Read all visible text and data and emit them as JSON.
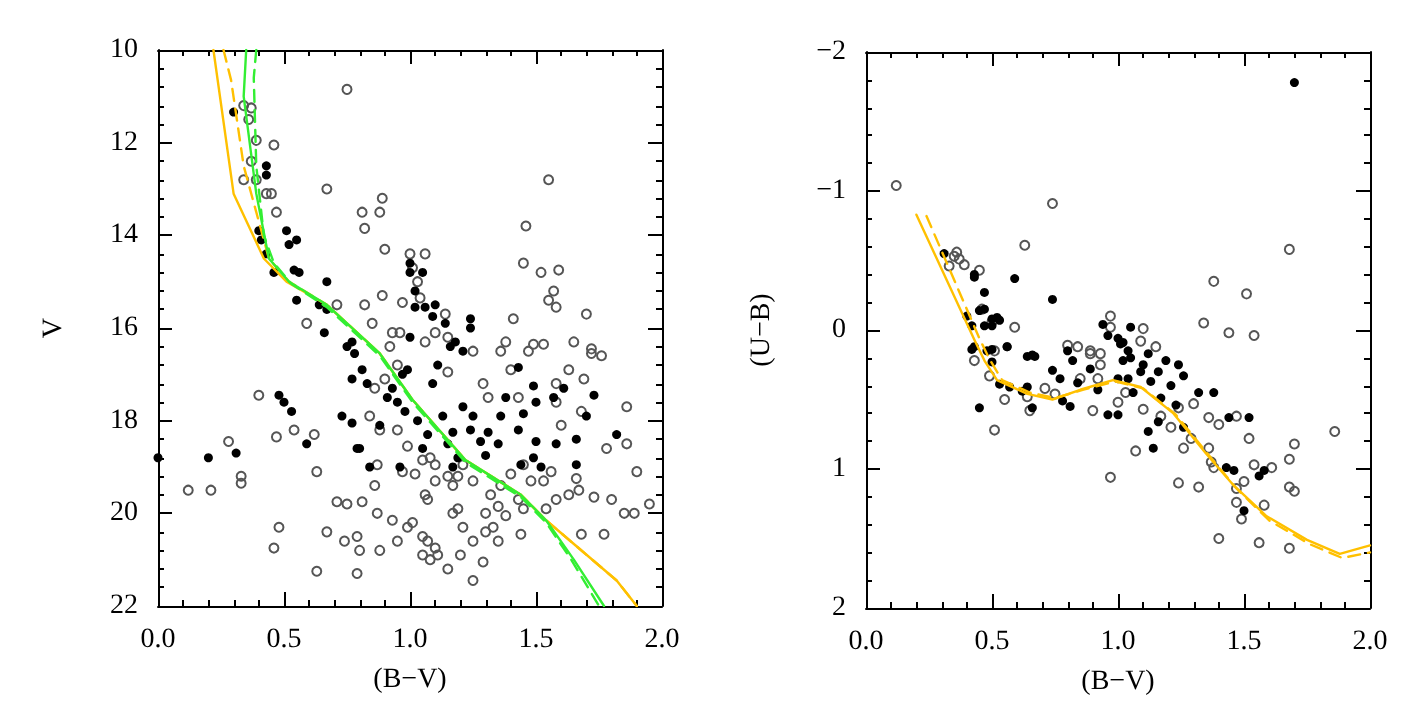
{
  "chart_data": [
    {
      "type": "scatter",
      "xlabel": "(B−V)",
      "ylabel": "V",
      "xlim": [
        0,
        2
      ],
      "ylim": [
        22,
        10
      ],
      "xticks": [
        {
          "value": 0,
          "label": "0.0"
        },
        {
          "value": 0.5,
          "label": "0.5"
        },
        {
          "value": 1,
          "label": "1.0"
        },
        {
          "value": 1.5,
          "label": "1.5"
        },
        {
          "value": 2,
          "label": "2.0"
        }
      ],
      "yticks": [
        10,
        12,
        14,
        16,
        18,
        20,
        22
      ],
      "grid": false,
      "series": [
        {
          "marker": "emptyCircle",
          "color": "#555555",
          "x": [
            0.34,
            0.37,
            0.36,
            0.39,
            0.46,
            0.37,
            0.34,
            0.39,
            0.43,
            0.45,
            0.47,
            0.75,
            0.67,
            0.81,
            0.88,
            0.89,
            0.82,
            0.9,
            1.0,
            1.06,
            1.01,
            1.03,
            0.89,
            1.04,
            0.97,
            1.14,
            1.1,
            1.15,
            1.41,
            1.38,
            1.46,
            1.45,
            1.52,
            1.55,
            1.59,
            1.57,
            1.55,
            1.58,
            1.7,
            1.65,
            1.49,
            1.53,
            1.72,
            1.72,
            0.59,
            0.71,
            0.82,
            0.85,
            0.93,
            0.96,
            1.06,
            0.92,
            0.4,
            0.54,
            0.47,
            0.62,
            0.28,
            0.33,
            0.33,
            0.12,
            0.21,
            0.48,
            0.46,
            0.63,
            0.71,
            0.75,
            0.67,
            0.74,
            0.63,
            0.79,
            0.79,
            0.8,
            0.81,
            0.87,
            0.86,
            0.87,
            0.88,
            0.93,
            0.95,
            0.99,
            1.01,
            1.05,
            1.07,
            1.1,
            1.11,
            1.15,
            1.25,
            1.29,
            1.25,
            1.3,
            1.35,
            1.44,
            1.38,
            1.45,
            1.54,
            1.58,
            1.63,
            1.67,
            1.73,
            1.8,
            1.85,
            1.89,
            1.95,
            1.9,
            1.86,
            1.86,
            1.78,
            1.77,
            1.68,
            1.68,
            1.58,
            1.6,
            1.66,
            1.56,
            1.48,
            1.43,
            1.32,
            1.3,
            1.19,
            1.17,
            1.1,
            1.06,
            1.02,
            0.97,
            0.99,
            1.05,
            1.1,
            1.15,
            1.19,
            1.25,
            1.36,
            1.4,
            1.45,
            1.53,
            1.4,
            1.43,
            1.29,
            1.31,
            1.15,
            1.25,
            1.36,
            1.47,
            1.58,
            1.63,
            1.69,
            0.95,
            0.9,
            0.86,
            0.88,
            0.95,
            0.84,
            1.08,
            1.21,
            1.07,
            1.17,
            1.21,
            1.33,
            1.35,
            1.05,
            1.08,
            1.2,
            1.76
          ],
          "values": [
            11.2,
            11.25,
            11.5,
            11.95,
            12.05,
            12.4,
            12.8,
            12.8,
            13.1,
            13.1,
            13.5,
            10.85,
            13.0,
            13.5,
            13.5,
            13.2,
            13.85,
            14.3,
            14.4,
            14.4,
            14.7,
            15.0,
            15.3,
            15.35,
            15.45,
            15.7,
            16.1,
            16.2,
            15.8,
            16.3,
            13.8,
            14.6,
            14.8,
            12.8,
            14.75,
            15.2,
            15.4,
            15.55,
            15.7,
            16.3,
            16.35,
            16.35,
            16.45,
            16.55,
            15.9,
            15.5,
            15.5,
            15.9,
            16.1,
            16.1,
            16.3,
            16.4,
            17.45,
            18.2,
            18.35,
            18.3,
            18.45,
            19.2,
            19.35,
            19.5,
            19.5,
            20.3,
            20.75,
            19.1,
            19.75,
            19.8,
            20.4,
            20.6,
            21.25,
            21.3,
            20.5,
            20.8,
            19.75,
            18.95,
            19.4,
            20.0,
            20.8,
            20.15,
            20.6,
            20.3,
            20.2,
            20.5,
            20.6,
            20.75,
            20.9,
            21.2,
            21.45,
            21.05,
            20.6,
            20.4,
            20.6,
            20.45,
            20.05,
            19.9,
            19.9,
            19.7,
            19.6,
            19.5,
            19.65,
            19.7,
            20.0,
            20.0,
            19.8,
            19.1,
            18.5,
            17.7,
            18.6,
            20.45,
            20.45,
            17.8,
            17.6,
            18.1,
            19.25,
            19.1,
            19.3,
            19.7,
            19.6,
            20.0,
            19.9,
            19.4,
            19.3,
            19.6,
            19.15,
            19.1,
            18.55,
            18.85,
            18.95,
            19.2,
            19.2,
            19.3,
            19.4,
            19.15,
            18.95,
            19.3,
            16.9,
            17.5,
            17.2,
            17.5,
            16.95,
            16.5,
            16.5,
            16.5,
            17.2,
            16.9,
            17.1,
            16.8,
            17.1,
            17.3,
            18.2,
            18.2,
            17.9,
            18.8,
            18.95,
            19.7,
            20.0,
            20.3,
            20.3,
            19.85,
            20.9,
            21.0,
            20.9,
            16.6
          ]
        },
        {
          "marker": "circle",
          "color": "#000000",
          "x": [
            0.3,
            0.43,
            0.43,
            0.4,
            0.41,
            0.51,
            0.43,
            0.52,
            0.55,
            0.46,
            0.54,
            0.56,
            0.55,
            0.67,
            0.64,
            0.67,
            0.66,
            0.75,
            0.77,
            1.0,
            1.0,
            1.05,
            1.02,
            1.02,
            1.06,
            1.1,
            1.09,
            1.14,
            1.0,
            1.16,
            1.18,
            1.21,
            1.24,
            1.24,
            0.78,
            0.0,
            0.2,
            0.31,
            0.48,
            0.5,
            0.53,
            0.59,
            0.73,
            0.77,
            0.79,
            0.8,
            0.84,
            0.77,
            0.81,
            0.83,
            0.91,
            0.93,
            0.95,
            0.97,
            0.98,
            1.03,
            1.05,
            1.09,
            1.11,
            1.13,
            1.15,
            1.17,
            1.19,
            1.21,
            1.24,
            1.25,
            1.28,
            1.3,
            1.31,
            1.35,
            1.36,
            1.38,
            1.43,
            1.45,
            1.44,
            1.49,
            1.5,
            1.52,
            1.49,
            1.5,
            1.57,
            1.58,
            1.61,
            1.66,
            1.66,
            1.7,
            1.73,
            1.82,
            1.43,
            1.07,
            0.96,
            1.17,
            0.88,
            0.99
          ],
          "values": [
            11.34,
            12.5,
            12.7,
            13.9,
            14.1,
            13.9,
            14.4,
            14.2,
            14.1,
            14.8,
            14.75,
            14.8,
            15.4,
            15.0,
            15.5,
            15.6,
            16.1,
            16.4,
            16.3,
            14.6,
            14.8,
            14.8,
            15.2,
            15.55,
            15.55,
            15.5,
            15.75,
            15.9,
            16.2,
            16.4,
            16.3,
            16.5,
            15.8,
            16.0,
            16.55,
            18.8,
            18.8,
            18.7,
            17.45,
            17.6,
            17.8,
            18.5,
            17.9,
            18.05,
            18.6,
            18.6,
            19.0,
            17.1,
            16.9,
            17.2,
            17.5,
            17.3,
            17.6,
            17.0,
            17.8,
            18.0,
            18.6,
            17.2,
            16.8,
            17.9,
            18.5,
            18.25,
            18.8,
            17.7,
            18.2,
            17.9,
            18.45,
            18.75,
            18.25,
            18.5,
            17.9,
            17.5,
            18.2,
            17.85,
            18.95,
            18.8,
            17.6,
            19.0,
            17.25,
            18.45,
            17.5,
            18.5,
            17.3,
            18.4,
            18.95,
            17.9,
            17.45,
            18.3,
            16.85,
            18.3,
            19.0,
            19.0,
            18.1,
            16.9
          ]
        },
        {
          "type": "line",
          "marker": "none",
          "line_style": "solid",
          "color": "#ffc000",
          "x": [
            0.22,
            0.3,
            0.42,
            0.51,
            0.67,
            0.88,
            1.01,
            1.22,
            1.44,
            1.54,
            1.82,
            1.9
          ],
          "values": [
            10,
            13.1,
            14.5,
            15.0,
            15.5,
            16.55,
            17.55,
            18.85,
            19.6,
            20.15,
            21.45,
            22
          ]
        },
        {
          "type": "line",
          "marker": "none",
          "line_style": "dashed",
          "color": "#ffc000",
          "x": [
            0.26,
            0.29,
            0.34,
            0.44,
            0.52,
            0.67,
            0.88,
            1.01,
            1.22,
            1.44,
            1.54,
            1.82,
            1.9
          ],
          "values": [
            10,
            10.65,
            12.5,
            14.5,
            15.0,
            15.5,
            16.55,
            17.55,
            18.85,
            19.6,
            20.15,
            21.45,
            22
          ]
        },
        {
          "type": "line",
          "marker": "none",
          "line_style": "solid",
          "color": "#33ee33",
          "x": [
            0.35,
            0.34,
            0.39,
            0.44,
            0.52,
            0.67,
            0.88,
            1.01,
            1.22,
            1.44,
            1.54,
            1.65,
            1.77
          ],
          "values": [
            10,
            11,
            13.1,
            14.5,
            15.0,
            15.5,
            16.55,
            17.55,
            18.85,
            19.6,
            20.15,
            21,
            22
          ]
        },
        {
          "type": "line",
          "marker": "none",
          "line_style": "dashed",
          "color": "#33ee33",
          "x": [
            0.39,
            0.38,
            0.39,
            0.42,
            0.46,
            0.53,
            0.67,
            0.88,
            1.01,
            1.22,
            1.44,
            1.54,
            1.64,
            1.75
          ],
          "values": [
            10,
            10.6,
            12.5,
            14.0,
            14.6,
            15.05,
            15.55,
            16.6,
            17.6,
            18.9,
            19.65,
            20.2,
            21,
            22
          ]
        }
      ]
    },
    {
      "type": "scatter",
      "xlabel": "(B−V)",
      "ylabel": "(U−B)",
      "xlim": [
        0,
        2
      ],
      "ylim": [
        2,
        -2
      ],
      "xticks": [
        {
          "value": 0,
          "label": "0.0"
        },
        {
          "value": 0.5,
          "label": "0.5"
        },
        {
          "value": 1,
          "label": "1.0"
        },
        {
          "value": 1.5,
          "label": "1.5"
        },
        {
          "value": 2,
          "label": "2.0"
        }
      ],
      "yticks": [
        {
          "value": -2,
          "label": "−2"
        },
        {
          "value": -1,
          "label": "−1"
        },
        0,
        1,
        2
      ],
      "grid": false,
      "series": [
        {
          "marker": "emptyCircle",
          "color": "#555555",
          "x": [
            0.12,
            0.74,
            0.63,
            0.33,
            0.36,
            0.35,
            0.37,
            0.39,
            0.45,
            0.46,
            0.5,
            0.59,
            0.8,
            0.97,
            0.97,
            0.89,
            0.93,
            1.1,
            1.09,
            1.34,
            1.38,
            1.44,
            1.51,
            1.54,
            1.68,
            0.43,
            0.51,
            0.49,
            0.55,
            0.51,
            0.64,
            0.65,
            0.71,
            0.75,
            0.84,
            0.85,
            0.89,
            0.92,
            0.93,
            1.03,
            1.0,
            0.9,
            1.07,
            0.97,
            1.1,
            1.15,
            1.17,
            1.24,
            1.3,
            1.29,
            1.21,
            1.36,
            1.26,
            1.36,
            1.37,
            1.38,
            1.24,
            1.32,
            1.47,
            1.5,
            1.47,
            1.49,
            1.58,
            1.4,
            1.56,
            1.68,
            1.47,
            1.52,
            1.54,
            1.61,
            1.68,
            1.7,
            1.68,
            1.7,
            1.86,
            1.4
          ],
          "values": [
            -1.04,
            -0.91,
            -0.61,
            -0.46,
            -0.56,
            -0.53,
            -0.51,
            -0.47,
            -0.43,
            -0.15,
            -0.06,
            -0.02,
            0.11,
            -0.1,
            -0.02,
            0.15,
            0.17,
            -0.01,
            0.08,
            -0.05,
            -0.35,
            0.02,
            -0.26,
            0.04,
            -0.58,
            0.22,
            0.15,
            0.33,
            0.5,
            0.72,
            0.48,
            0.58,
            0.42,
            0.46,
            0.12,
            0.35,
            0.17,
            0.35,
            0.25,
            0.45,
            0.52,
            0.58,
            0.87,
            1.06,
            0.57,
            0.12,
            0.62,
            0.56,
            0.53,
            0.78,
            0.7,
            0.63,
            0.85,
            0.85,
            0.95,
            0.99,
            1.1,
            1.13,
            1.14,
            1.09,
            1.24,
            1.36,
            1.26,
            1.5,
            1.53,
            1.57,
            0.62,
            0.78,
            0.97,
            0.99,
            0.93,
            0.82,
            1.13,
            1.16,
            0.73,
            0.68
          ]
        },
        {
          "marker": "circle",
          "color": "#000000",
          "x": [
            0.31,
            0.43,
            0.43,
            0.47,
            0.4,
            0.42,
            0.45,
            0.47,
            0.5,
            0.5,
            0.52,
            0.53,
            0.47,
            0.59,
            0.74,
            0.56,
            0.5,
            0.42,
            0.94,
            0.96,
            1.0,
            1.01,
            1.05,
            1.02,
            0.8,
            1.7,
            0.64,
            0.66,
            0.43,
            0.48,
            0.56,
            0.67,
            0.5,
            0.53,
            0.57,
            0.45,
            0.62,
            0.64,
            0.66,
            0.74,
            0.77,
            0.78,
            0.81,
            0.82,
            0.84,
            0.89,
            0.92,
            0.96,
            1.0,
            1.02,
            1.04,
            1.05,
            1.06,
            1.09,
            1.1,
            1.12,
            1.13,
            1.16,
            1.17,
            1.19,
            1.21,
            1.23,
            1.24,
            1.26,
            1.16,
            1.14,
            1.12,
            1.26,
            1.32,
            1.38,
            1.43,
            1.46,
            1.44,
            1.52,
            1.5,
            1.56,
            1.58,
            1.0,
            1.04
          ],
          "values": [
            -0.55,
            -0.4,
            -0.38,
            -0.27,
            -0.1,
            -0.03,
            -0.14,
            -0.15,
            -0.08,
            -0.03,
            -0.09,
            -0.07,
            -0.03,
            -0.37,
            -0.22,
            0.12,
            0.14,
            0.14,
            -0.04,
            0.04,
            0.06,
            0.1,
            -0.02,
            0.09,
            0.15,
            -1.78,
            0.19,
            0.18,
            0.12,
            0.15,
            0.12,
            0.19,
            0.23,
            0.39,
            0.41,
            0.56,
            0.44,
            0.41,
            0.56,
            0.29,
            0.35,
            0.51,
            0.55,
            0.22,
            0.38,
            0.28,
            0.43,
            0.61,
            0.61,
            0.22,
            0.35,
            0.2,
            0.45,
            0.3,
            0.25,
            0.17,
            0.37,
            0.3,
            0.49,
            0.22,
            0.4,
            0.54,
            0.25,
            0.33,
            0.66,
            0.85,
            0.73,
            0.7,
            0.45,
            0.45,
            0.99,
            1.01,
            0.63,
            0.63,
            1.3,
            1.05,
            1.01,
            0.35,
            0.15
          ]
        },
        {
          "type": "line",
          "marker": "none",
          "line_style": "solid",
          "color": "#ffc000",
          "x": [
            0.2,
            0.43,
            0.47,
            0.52,
            0.64,
            0.74,
            0.85,
            0.98,
            1.09,
            1.22,
            1.35,
            1.46,
            1.59,
            1.75,
            1.88,
            2.0
          ],
          "values": [
            -0.83,
            0.07,
            0.22,
            0.36,
            0.46,
            0.5,
            0.43,
            0.36,
            0.41,
            0.6,
            0.89,
            1.12,
            1.34,
            1.51,
            1.61,
            1.55
          ]
        },
        {
          "type": "line",
          "marker": "none",
          "line_style": "dashed",
          "color": "#ffc000",
          "x": [
            0.24,
            0.45,
            0.49,
            0.54,
            0.65,
            0.75,
            0.86,
            0.99,
            1.1,
            1.23,
            1.36,
            1.47,
            1.6,
            1.76,
            1.89,
            2.0
          ],
          "values": [
            -0.82,
            0.06,
            0.21,
            0.36,
            0.45,
            0.49,
            0.43,
            0.37,
            0.42,
            0.61,
            0.9,
            1.14,
            1.37,
            1.54,
            1.64,
            1.6
          ]
        }
      ]
    }
  ]
}
